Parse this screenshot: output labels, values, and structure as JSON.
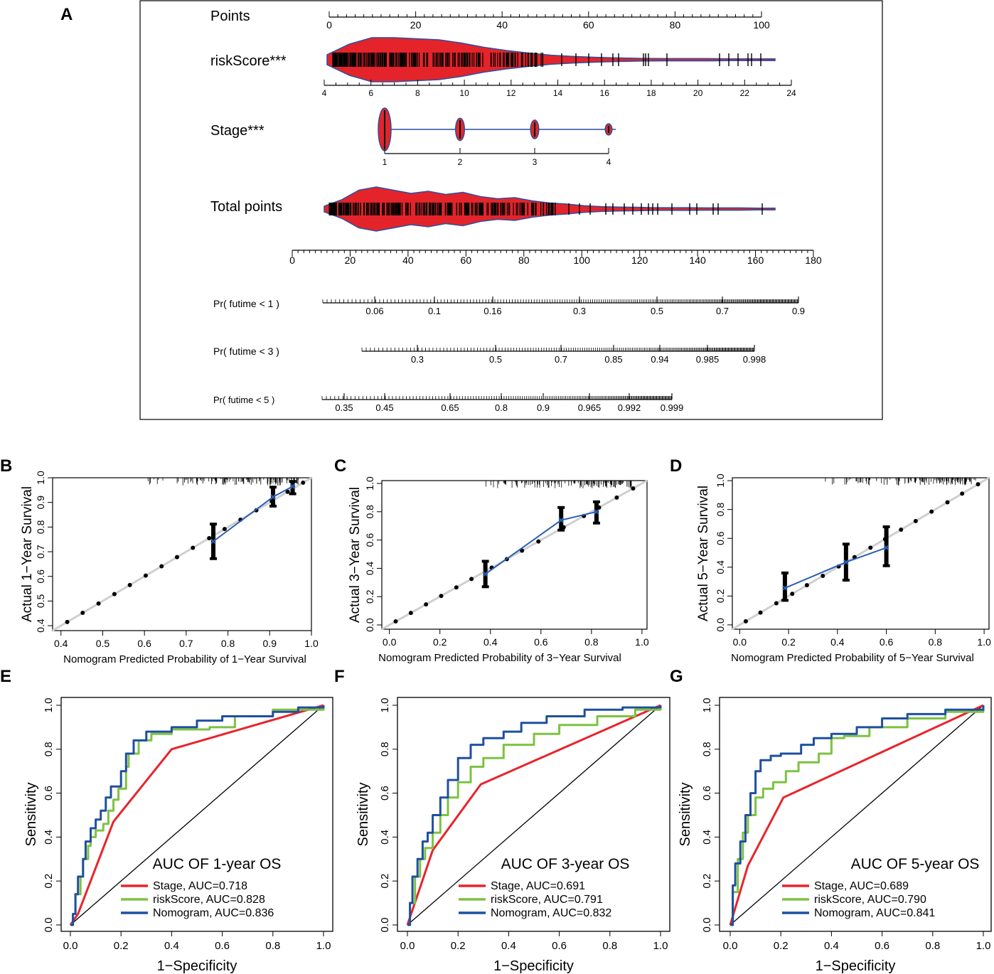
{
  "panel_labels": {
    "A": "A",
    "B": "B",
    "C": "C",
    "D": "D",
    "E": "E",
    "F": "F",
    "G": "G"
  },
  "chart_data": [
    {
      "type": "nomogram",
      "panel": "A",
      "rows": [
        {
          "id": "points",
          "label": "Points",
          "ticks": [
            "0",
            "20",
            "40",
            "60",
            "80",
            "100"
          ],
          "range": [
            0,
            100
          ]
        },
        {
          "id": "risk",
          "label": "riskScore***",
          "ticks": [
            "4",
            "6",
            "8",
            "10",
            "12",
            "14",
            "16",
            "18",
            "20",
            "22",
            "24"
          ],
          "range": [
            4,
            24
          ],
          "violin_widths": [
            0.2,
            0.7,
            1,
            1,
            0.95,
            0.9,
            0.75,
            0.55,
            0.4,
            0.28,
            0.18,
            0.12,
            0.08,
            0.05,
            0.03,
            0.02,
            0.02,
            0.02,
            0.01,
            0.01,
            0.01
          ]
        },
        {
          "id": "stage",
          "label": "Stage***",
          "ticks": [
            "1",
            "2",
            "3",
            "4"
          ],
          "range": [
            1,
            4
          ],
          "blobs": [
            {
              "value": 1,
              "size": 1.0
            },
            {
              "value": 2,
              "size": 0.45
            },
            {
              "value": 3,
              "size": 0.35
            },
            {
              "value": 4,
              "size": 0.15
            }
          ]
        },
        {
          "id": "total",
          "label": "Total points",
          "ticks": [
            "0",
            "20",
            "40",
            "60",
            "80",
            "100",
            "120",
            "140",
            "160",
            "180"
          ],
          "range": [
            0,
            180
          ],
          "violin_widths": [
            0.1,
            0.4,
            0.85,
            1,
            0.85,
            0.7,
            0.8,
            0.65,
            0.75,
            0.55,
            0.45,
            0.5,
            0.35,
            0.25,
            0.2,
            0.12,
            0.08,
            0.06,
            0.05,
            0.03,
            0.03,
            0.03,
            0.02,
            0.02,
            0.02,
            0.01,
            0.01
          ]
        }
      ],
      "prob_rows": [
        {
          "label": "Pr( futime < 1 )",
          "ticks": [
            "0.06",
            "0.1",
            "0.16",
            "0.3",
            "0.5",
            "0.7",
            "0.9"
          ]
        },
        {
          "label": "Pr( futime < 3 )",
          "ticks": [
            "0.3",
            "0.5",
            "0.7",
            "0.85",
            "0.94",
            "0.985",
            "0.998"
          ]
        },
        {
          "label": "Pr( futime < 5 )",
          "ticks": [
            "0.35",
            "0.45",
            "0.65",
            "0.8",
            "0.9",
            "0.965",
            "0.992",
            "0.999"
          ]
        }
      ]
    },
    {
      "type": "scatter",
      "panel": "B",
      "title": "",
      "xlabel": "Nomogram Predicted Probability of 1−Year Survival",
      "ylabel": "Actual 1−Year Survival",
      "xlim": [
        0.38,
        1.0
      ],
      "ylim": [
        0.38,
        1.0
      ],
      "xticks": [
        "0.4",
        "0.5",
        "0.6",
        "0.7",
        "0.8",
        "0.9",
        "1.0"
      ],
      "yticks": [
        "0.4",
        "0.5",
        "0.6",
        "0.7",
        "0.8",
        "0.9",
        "1.0"
      ],
      "reference_points": [
        [
          0.415,
          0.415
        ],
        [
          0.452,
          0.452
        ],
        [
          0.49,
          0.49
        ],
        [
          0.528,
          0.528
        ],
        [
          0.565,
          0.565
        ],
        [
          0.603,
          0.603
        ],
        [
          0.641,
          0.641
        ],
        [
          0.678,
          0.678
        ],
        [
          0.716,
          0.716
        ],
        [
          0.755,
          0.755
        ],
        [
          0.792,
          0.792
        ],
        [
          0.83,
          0.83
        ],
        [
          0.868,
          0.868
        ],
        [
          0.905,
          0.905
        ],
        [
          0.943,
          0.943
        ],
        [
          0.98,
          0.98
        ]
      ],
      "calibration_x": [
        0.765,
        0.908,
        0.955
      ],
      "calibration_y": [
        0.742,
        0.922,
        0.965
      ],
      "error_bars": [
        [
          0.765,
          0.672,
          0.812
        ],
        [
          0.908,
          0.885,
          0.962
        ],
        [
          0.955,
          0.935,
          0.985
        ]
      ]
    },
    {
      "type": "scatter",
      "panel": "C",
      "title": "",
      "xlabel": "Nomogram Predicted Probability of 3−Year Survival",
      "ylabel": "Actual 3−Year Survival",
      "xlim": [
        -0.03,
        1.02
      ],
      "ylim": [
        -0.03,
        1.02
      ],
      "xticks": [
        "0.0",
        "0.2",
        "0.4",
        "0.6",
        "0.8",
        "1.0"
      ],
      "yticks": [
        "0.0",
        "0.2",
        "0.4",
        "0.6",
        "0.8",
        "1.0"
      ],
      "reference_points": [
        [
          0.025,
          0.025
        ],
        [
          0.085,
          0.085
        ],
        [
          0.145,
          0.145
        ],
        [
          0.205,
          0.205
        ],
        [
          0.265,
          0.265
        ],
        [
          0.325,
          0.325
        ],
        [
          0.405,
          0.405
        ],
        [
          0.465,
          0.465
        ],
        [
          0.525,
          0.525
        ],
        [
          0.59,
          0.59
        ],
        [
          0.69,
          0.69
        ],
        [
          0.77,
          0.77
        ],
        [
          0.83,
          0.83
        ],
        [
          0.9,
          0.9
        ],
        [
          0.965,
          0.965
        ]
      ],
      "calibration_x": [
        0.38,
        0.68,
        0.82
      ],
      "calibration_y": [
        0.36,
        0.74,
        0.8
      ],
      "error_bars": [
        [
          0.38,
          0.27,
          0.45
        ],
        [
          0.68,
          0.67,
          0.83
        ],
        [
          0.82,
          0.72,
          0.87
        ]
      ]
    },
    {
      "type": "scatter",
      "panel": "D",
      "title": "",
      "xlabel": "Nomogram Predicted Probability of 5−Year Survival",
      "ylabel": "Actual 5−Year Survival",
      "xlim": [
        -0.03,
        1.02
      ],
      "ylim": [
        -0.03,
        1.02
      ],
      "xticks": [
        "0.0",
        "0.2",
        "0.4",
        "0.6",
        "0.8",
        "1.0"
      ],
      "yticks": [
        "0.0",
        "0.2",
        "0.4",
        "0.6",
        "0.8",
        "1.0"
      ],
      "reference_points": [
        [
          0.025,
          0.025
        ],
        [
          0.085,
          0.085
        ],
        [
          0.15,
          0.15
        ],
        [
          0.215,
          0.215
        ],
        [
          0.275,
          0.275
        ],
        [
          0.34,
          0.34
        ],
        [
          0.405,
          0.405
        ],
        [
          0.47,
          0.47
        ],
        [
          0.535,
          0.535
        ],
        [
          0.595,
          0.595
        ],
        [
          0.66,
          0.66
        ],
        [
          0.72,
          0.72
        ],
        [
          0.785,
          0.785
        ],
        [
          0.85,
          0.85
        ],
        [
          0.91,
          0.91
        ],
        [
          0.975,
          0.975
        ]
      ],
      "calibration_x": [
        0.185,
        0.435,
        0.6
      ],
      "calibration_y": [
        0.255,
        0.435,
        0.535
      ],
      "error_bars": [
        [
          0.185,
          0.17,
          0.36
        ],
        [
          0.435,
          0.31,
          0.56
        ],
        [
          0.6,
          0.41,
          0.68
        ]
      ]
    },
    {
      "type": "line",
      "panel": "E",
      "title": "AUC OF 1-year OS",
      "xlabel": "1−Specificity",
      "ylabel": "Sensitivity",
      "xlim": [
        0,
        1
      ],
      "ylim": [
        0,
        1
      ],
      "xticks": [
        "0.0",
        "0.2",
        "0.4",
        "0.6",
        "0.8",
        "1.0"
      ],
      "yticks": [
        "0.0",
        "0.2",
        "0.4",
        "0.6",
        "0.8",
        "1.0"
      ],
      "series": [
        {
          "name": "Stage, AUC=0.718",
          "color": "#e8242b",
          "points": [
            [
              0,
              0
            ],
            [
              0.03,
              0.05
            ],
            [
              0.17,
              0.47
            ],
            [
              0.4,
              0.8
            ],
            [
              1,
              1
            ]
          ]
        },
        {
          "name": "riskScore, AUC=0.828",
          "color": "#7dc242",
          "points": [
            [
              0,
              0
            ],
            [
              0.01,
              0.05
            ],
            [
              0.02,
              0.14
            ],
            [
              0.04,
              0.22
            ],
            [
              0.05,
              0.3
            ],
            [
              0.07,
              0.36
            ],
            [
              0.08,
              0.4
            ],
            [
              0.1,
              0.43
            ],
            [
              0.13,
              0.46
            ],
            [
              0.15,
              0.52
            ],
            [
              0.17,
              0.57
            ],
            [
              0.19,
              0.62
            ],
            [
              0.22,
              0.72
            ],
            [
              0.23,
              0.78
            ],
            [
              0.27,
              0.84
            ],
            [
              0.32,
              0.87
            ],
            [
              0.4,
              0.89
            ],
            [
              0.55,
              0.9
            ],
            [
              0.65,
              0.95
            ],
            [
              0.8,
              0.98
            ],
            [
              1,
              1
            ]
          ]
        },
        {
          "name": "Nomogram, AUC=0.836",
          "color": "#1f4fa0",
          "points": [
            [
              0,
              0
            ],
            [
              0.01,
              0.05
            ],
            [
              0.02,
              0.14
            ],
            [
              0.03,
              0.22
            ],
            [
              0.05,
              0.3
            ],
            [
              0.06,
              0.38
            ],
            [
              0.08,
              0.44
            ],
            [
              0.1,
              0.48
            ],
            [
              0.12,
              0.52
            ],
            [
              0.14,
              0.58
            ],
            [
              0.16,
              0.63
            ],
            [
              0.2,
              0.7
            ],
            [
              0.22,
              0.78
            ],
            [
              0.25,
              0.84
            ],
            [
              0.3,
              0.88
            ],
            [
              0.4,
              0.9
            ],
            [
              0.5,
              0.93
            ],
            [
              0.6,
              0.95
            ],
            [
              0.8,
              0.97
            ],
            [
              0.9,
              0.99
            ],
            [
              1,
              1
            ]
          ]
        }
      ]
    },
    {
      "type": "line",
      "panel": "F",
      "title": "AUC OF 3-year OS",
      "xlabel": "1−Specificity",
      "ylabel": "Sensitivity",
      "xlim": [
        0,
        1
      ],
      "ylim": [
        0,
        1
      ],
      "xticks": [
        "0.0",
        "0.2",
        "0.4",
        "0.6",
        "0.8",
        "1.0"
      ],
      "yticks": [
        "0.0",
        "0.2",
        "0.4",
        "0.6",
        "0.8",
        "1.0"
      ],
      "series": [
        {
          "name": "Stage, AUC=0.691",
          "color": "#e8242b",
          "points": [
            [
              0,
              0
            ],
            [
              0.1,
              0.34
            ],
            [
              0.29,
              0.64
            ],
            [
              1,
              1
            ]
          ]
        },
        {
          "name": "riskScore, AUC=0.791",
          "color": "#7dc242",
          "points": [
            [
              0,
              0
            ],
            [
              0.01,
              0.1
            ],
            [
              0.03,
              0.22
            ],
            [
              0.05,
              0.3
            ],
            [
              0.07,
              0.35
            ],
            [
              0.1,
              0.42
            ],
            [
              0.13,
              0.5
            ],
            [
              0.16,
              0.58
            ],
            [
              0.2,
              0.65
            ],
            [
              0.25,
              0.72
            ],
            [
              0.3,
              0.76
            ],
            [
              0.38,
              0.82
            ],
            [
              0.5,
              0.87
            ],
            [
              0.6,
              0.91
            ],
            [
              0.75,
              0.95
            ],
            [
              0.9,
              0.98
            ],
            [
              1,
              1
            ]
          ]
        },
        {
          "name": "Nomogram, AUC=0.832",
          "color": "#1f4fa0",
          "points": [
            [
              0,
              0
            ],
            [
              0.01,
              0.1
            ],
            [
              0.02,
              0.22
            ],
            [
              0.04,
              0.3
            ],
            [
              0.06,
              0.38
            ],
            [
              0.08,
              0.42
            ],
            [
              0.1,
              0.5
            ],
            [
              0.13,
              0.58
            ],
            [
              0.16,
              0.66
            ],
            [
              0.2,
              0.76
            ],
            [
              0.25,
              0.82
            ],
            [
              0.3,
              0.85
            ],
            [
              0.38,
              0.88
            ],
            [
              0.45,
              0.92
            ],
            [
              0.55,
              0.95
            ],
            [
              0.7,
              0.98
            ],
            [
              0.85,
              0.99
            ],
            [
              1,
              1
            ]
          ]
        }
      ]
    },
    {
      "type": "line",
      "panel": "G",
      "title": "AUC OF 5-year OS",
      "xlabel": "1−Specificity",
      "ylabel": "Sensitivity",
      "xlim": [
        0,
        1
      ],
      "ylim": [
        0,
        1
      ],
      "xticks": [
        "0.0",
        "0.2",
        "0.4",
        "0.6",
        "0.8",
        "1.0"
      ],
      "yticks": [
        "0.0",
        "0.2",
        "0.4",
        "0.6",
        "0.8",
        "1.0"
      ],
      "series": [
        {
          "name": "Stage, AUC=0.689",
          "color": "#e8242b",
          "points": [
            [
              0,
              0
            ],
            [
              0.07,
              0.27
            ],
            [
              0.21,
              0.58
            ],
            [
              1,
              1
            ]
          ]
        },
        {
          "name": "riskScore, AUC=0.790",
          "color": "#7dc242",
          "points": [
            [
              0,
              0
            ],
            [
              0.01,
              0.15
            ],
            [
              0.03,
              0.3
            ],
            [
              0.05,
              0.42
            ],
            [
              0.07,
              0.5
            ],
            [
              0.1,
              0.58
            ],
            [
              0.13,
              0.62
            ],
            [
              0.17,
              0.65
            ],
            [
              0.22,
              0.7
            ],
            [
              0.27,
              0.74
            ],
            [
              0.35,
              0.78
            ],
            [
              0.4,
              0.85
            ],
            [
              0.45,
              0.86
            ],
            [
              0.55,
              0.9
            ],
            [
              0.7,
              0.94
            ],
            [
              0.85,
              0.97
            ],
            [
              1,
              1
            ]
          ]
        },
        {
          "name": "Nomogram, AUC=0.841",
          "color": "#1f4fa0",
          "points": [
            [
              0,
              0
            ],
            [
              0.01,
              0.18
            ],
            [
              0.02,
              0.28
            ],
            [
              0.04,
              0.38
            ],
            [
              0.06,
              0.5
            ],
            [
              0.08,
              0.6
            ],
            [
              0.1,
              0.7
            ],
            [
              0.12,
              0.75
            ],
            [
              0.16,
              0.77
            ],
            [
              0.2,
              0.78
            ],
            [
              0.28,
              0.82
            ],
            [
              0.33,
              0.85
            ],
            [
              0.4,
              0.87
            ],
            [
              0.5,
              0.9
            ],
            [
              0.6,
              0.94
            ],
            [
              0.7,
              0.96
            ],
            [
              0.85,
              0.98
            ],
            [
              1,
              1
            ]
          ]
        }
      ]
    }
  ]
}
